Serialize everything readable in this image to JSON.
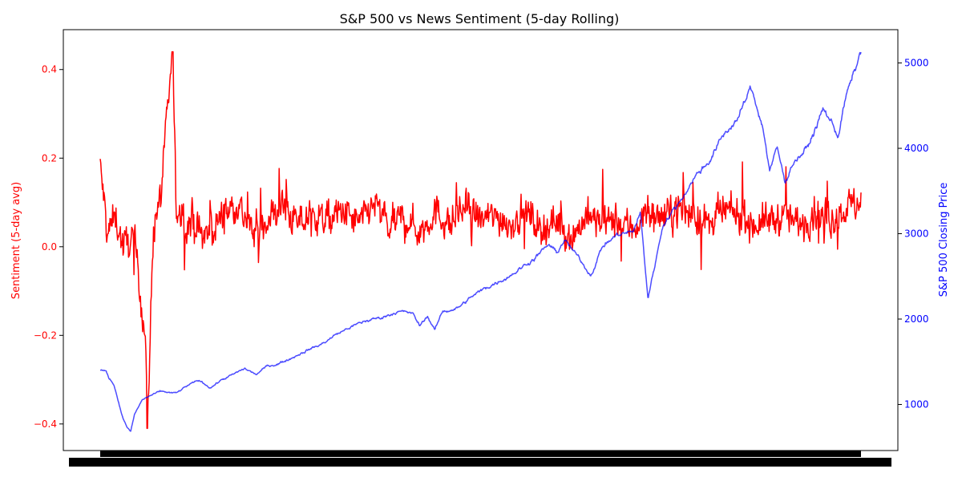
{
  "chart_data": {
    "type": "line",
    "title": "S&P 500 vs News Sentiment (5-day Rolling)",
    "y_left_label": "Sentiment (5-day avg)",
    "y_right_label": "S&P 500 Closing Price",
    "y_left_ticks": [
      "0.4",
      "0.2",
      "0.0",
      "−0.2",
      "−0.4"
    ],
    "y_left_tick_values": [
      0.4,
      0.2,
      0.0,
      -0.2,
      -0.4
    ],
    "y_right_ticks": [
      "5000",
      "4000",
      "3000",
      "2000",
      "1000"
    ],
    "y_right_tick_values": [
      5000,
      4000,
      3000,
      2000,
      1000
    ],
    "y_left_lim": [
      -0.46,
      0.49
    ],
    "y_right_lim": [
      460,
      5390
    ],
    "x_labels_note": "x tick labels overlap into an unreadable solid band",
    "colors": {
      "sentiment": "#ff0000",
      "price": "#0000ff",
      "left_axis": "#ff0000",
      "right_axis": "#0000ff"
    },
    "series": [
      {
        "name": "Sentiment (5-day avg)",
        "axis": "left",
        "approx_profile": [
          [
            0,
            0.18
          ],
          [
            0.01,
            0.03
          ],
          [
            0.02,
            0.07
          ],
          [
            0.03,
            0.0
          ],
          [
            0.045,
            0.02
          ],
          [
            0.06,
            -0.22
          ],
          [
            0.062,
            -0.41
          ],
          [
            0.07,
            0.05
          ],
          [
            0.08,
            0.12
          ],
          [
            0.095,
            0.44
          ],
          [
            0.1,
            0.08
          ],
          [
            0.12,
            0.05
          ],
          [
            0.14,
            0.02
          ],
          [
            0.16,
            0.07
          ],
          [
            0.18,
            0.1
          ],
          [
            0.2,
            0.03
          ],
          [
            0.22,
            0.06
          ],
          [
            0.24,
            0.09
          ],
          [
            0.26,
            0.05
          ],
          [
            0.28,
            0.07
          ],
          [
            0.3,
            0.06
          ],
          [
            0.32,
            0.08
          ],
          [
            0.34,
            0.05
          ],
          [
            0.36,
            0.1
          ],
          [
            0.38,
            0.04
          ],
          [
            0.4,
            0.07
          ],
          [
            0.42,
            0.03
          ],
          [
            0.44,
            0.08
          ],
          [
            0.46,
            0.05
          ],
          [
            0.48,
            0.09
          ],
          [
            0.5,
            0.06
          ],
          [
            0.52,
            0.07
          ],
          [
            0.54,
            0.05
          ],
          [
            0.56,
            0.08
          ],
          [
            0.58,
            0.04
          ],
          [
            0.6,
            0.06
          ],
          [
            0.62,
            0.02
          ],
          [
            0.64,
            0.07
          ],
          [
            0.66,
            0.05
          ],
          [
            0.68,
            0.06
          ],
          [
            0.7,
            0.04
          ],
          [
            0.72,
            0.08
          ],
          [
            0.74,
            0.06
          ],
          [
            0.76,
            0.09
          ],
          [
            0.78,
            0.07
          ],
          [
            0.8,
            0.05
          ],
          [
            0.82,
            0.08
          ],
          [
            0.84,
            0.07
          ],
          [
            0.86,
            0.05
          ],
          [
            0.88,
            0.06
          ],
          [
            0.9,
            0.07
          ],
          [
            0.92,
            0.05
          ],
          [
            0.94,
            0.08
          ],
          [
            0.96,
            0.06
          ],
          [
            0.98,
            0.09
          ],
          [
            1.0,
            0.1
          ]
        ]
      },
      {
        "name": "S&P 500 Closing Price",
        "axis": "right",
        "approx_profile": [
          [
            0.0,
            1410
          ],
          [
            0.008,
            1380
          ],
          [
            0.012,
            1300
          ],
          [
            0.018,
            1240
          ],
          [
            0.025,
            1000
          ],
          [
            0.03,
            840
          ],
          [
            0.035,
            740
          ],
          [
            0.04,
            680
          ],
          [
            0.045,
            880
          ],
          [
            0.055,
            1050
          ],
          [
            0.065,
            1100
          ],
          [
            0.08,
            1150
          ],
          [
            0.1,
            1130
          ],
          [
            0.115,
            1220
          ],
          [
            0.13,
            1280
          ],
          [
            0.145,
            1200
          ],
          [
            0.16,
            1290
          ],
          [
            0.175,
            1350
          ],
          [
            0.19,
            1420
          ],
          [
            0.205,
            1350
          ],
          [
            0.22,
            1450
          ],
          [
            0.235,
            1480
          ],
          [
            0.25,
            1540
          ],
          [
            0.27,
            1630
          ],
          [
            0.29,
            1700
          ],
          [
            0.31,
            1820
          ],
          [
            0.33,
            1910
          ],
          [
            0.35,
            1980
          ],
          [
            0.37,
            2020
          ],
          [
            0.39,
            2090
          ],
          [
            0.41,
            2070
          ],
          [
            0.42,
            1920
          ],
          [
            0.43,
            2040
          ],
          [
            0.44,
            1870
          ],
          [
            0.45,
            2090
          ],
          [
            0.47,
            2130
          ],
          [
            0.49,
            2270
          ],
          [
            0.51,
            2380
          ],
          [
            0.53,
            2470
          ],
          [
            0.55,
            2580
          ],
          [
            0.57,
            2710
          ],
          [
            0.59,
            2870
          ],
          [
            0.6,
            2770
          ],
          [
            0.61,
            2930
          ],
          [
            0.63,
            2700
          ],
          [
            0.645,
            2520
          ],
          [
            0.66,
            2850
          ],
          [
            0.68,
            2990
          ],
          [
            0.7,
            3020
          ],
          [
            0.71,
            3240
          ],
          [
            0.72,
            2240
          ],
          [
            0.74,
            3120
          ],
          [
            0.76,
            3350
          ],
          [
            0.78,
            3650
          ],
          [
            0.8,
            3850
          ],
          [
            0.82,
            4160
          ],
          [
            0.84,
            4380
          ],
          [
            0.855,
            4700
          ],
          [
            0.86,
            4580
          ],
          [
            0.87,
            4300
          ],
          [
            0.88,
            3750
          ],
          [
            0.89,
            4000
          ],
          [
            0.9,
            3600
          ],
          [
            0.91,
            3830
          ],
          [
            0.93,
            4010
          ],
          [
            0.95,
            4450
          ],
          [
            0.96,
            4330
          ],
          [
            0.97,
            4150
          ],
          [
            0.98,
            4600
          ],
          [
            0.99,
            4850
          ],
          [
            1.0,
            5130
          ]
        ]
      }
    ]
  }
}
